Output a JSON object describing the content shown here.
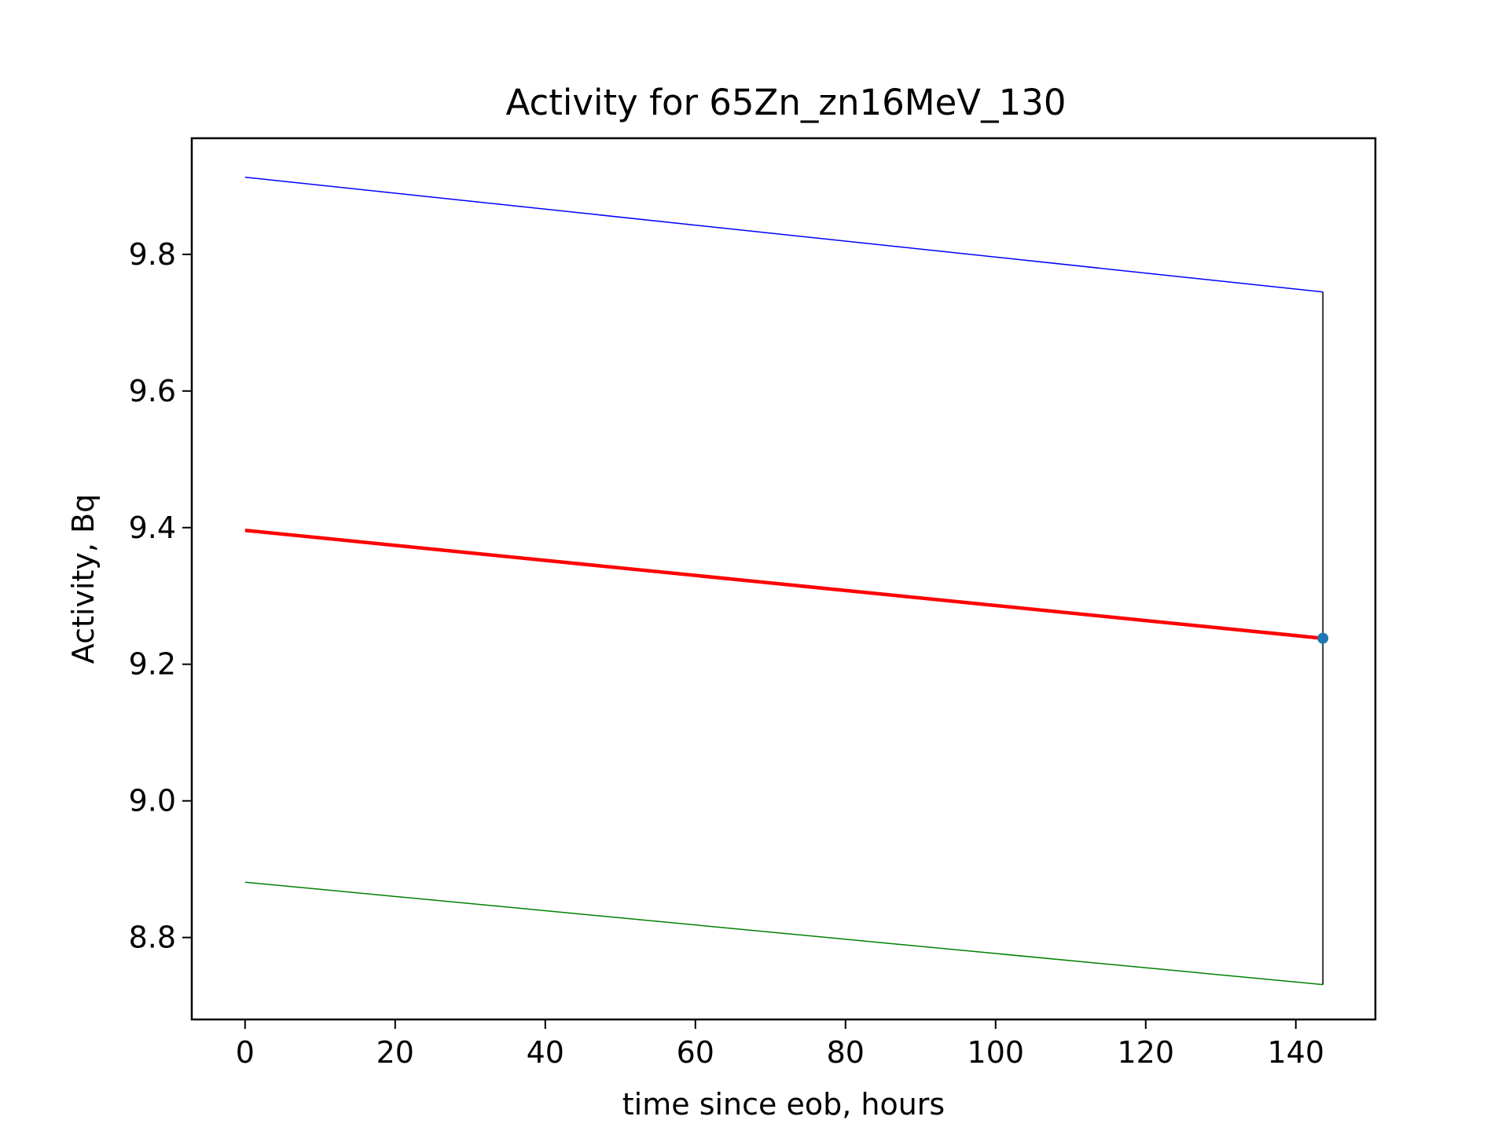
{
  "chart_data": {
    "type": "line",
    "title": "Activity for 65Zn_zn16MeV_130",
    "xlabel": "time since eob, hours",
    "ylabel": "Activity, Bq",
    "xlim": [
      -7.1,
      150.6
    ],
    "ylim": [
      8.68,
      9.97
    ],
    "xticks": [
      0,
      20,
      40,
      60,
      80,
      100,
      120,
      140
    ],
    "xtick_labels": [
      "0",
      "20",
      "40",
      "60",
      "80",
      "100",
      "120",
      "140"
    ],
    "yticks": [
      8.8,
      9.0,
      9.2,
      9.4,
      9.6,
      9.8
    ],
    "ytick_labels": [
      "8.8",
      "9.0",
      "9.2",
      "9.4",
      "9.6",
      "9.8"
    ],
    "grid": false,
    "legend": false,
    "series": [
      {
        "color": "#0000ff",
        "x": [
          0,
          143.6
        ],
        "y": [
          9.913,
          9.745
        ]
      },
      {
        "color": "#ff0000",
        "x": [
          0,
          143.6
        ],
        "y": [
          9.396,
          9.238
        ]
      },
      {
        "color": "#008000",
        "x": [
          0,
          143.6
        ],
        "y": [
          8.881,
          8.731
        ]
      },
      {
        "color": "#000000",
        "x": [
          143.6,
          143.6
        ],
        "y": [
          9.745,
          8.731
        ]
      }
    ],
    "points": [
      {
        "color": "#1f77b4",
        "x": 143.6,
        "y": 9.238
      }
    ]
  }
}
